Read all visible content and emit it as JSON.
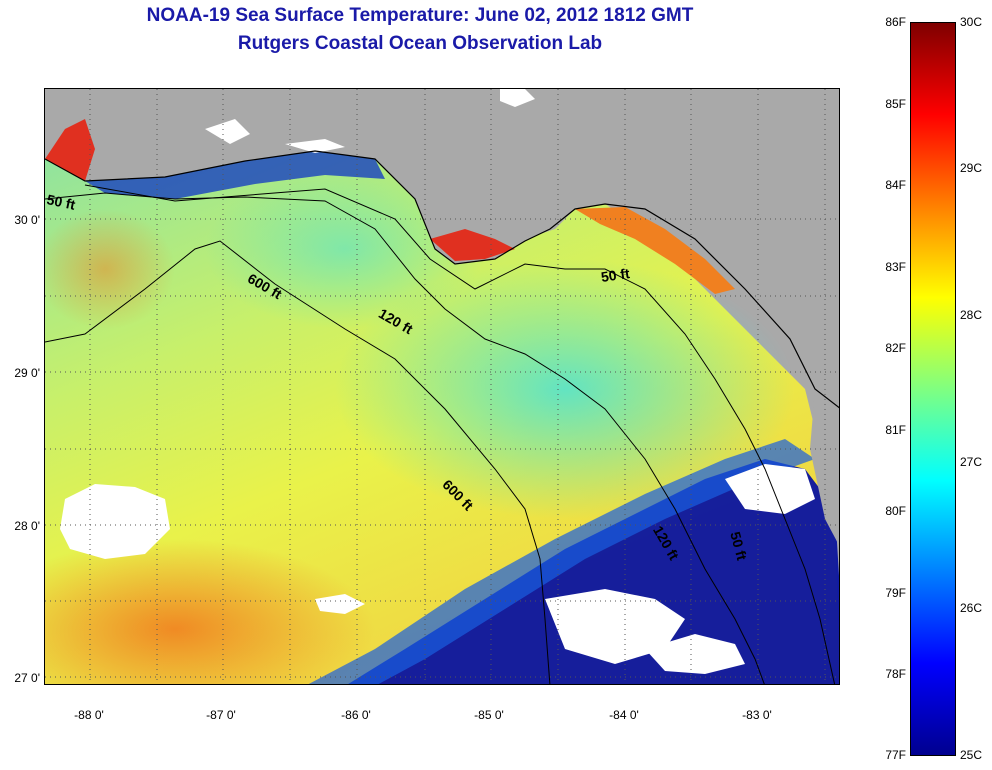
{
  "title": {
    "line1": "NOAA-19 Sea Surface Temperature:  June 02, 2012 1812 GMT",
    "line2": "Rutgers Coastal Ocean Observation Lab"
  },
  "map": {
    "lat_labels": [
      "30 0'",
      "29 0'",
      "28 0'",
      "27 0'"
    ],
    "lon_labels": [
      "-88 0'",
      "-87 0'",
      "-86 0'",
      "-85 0'",
      "-84 0'",
      "-83 0'"
    ],
    "contour_labels": [
      "50 ft",
      "600 ft",
      "120 ft",
      "50 ft",
      "600 ft",
      "120 ft",
      "50 ft"
    ]
  },
  "colorbar": {
    "fahrenheit_labels": [
      "86F",
      "85F",
      "84F",
      "83F",
      "82F",
      "81F",
      "80F",
      "79F",
      "78F",
      "77F"
    ],
    "celsius_labels": [
      "30C",
      "29C",
      "28C",
      "27C",
      "26C",
      "25C"
    ],
    "colors": [
      "#7f0000",
      "#ff0000",
      "#ff8000",
      "#ffff00",
      "#80ff80",
      "#00ffff",
      "#0080ff",
      "#0000ff",
      "#00008f"
    ]
  },
  "legend_colors": {
    "land": "#a9a9a9",
    "cloud": "#ffffff",
    "warm": "#e8a040",
    "cold": "#0a14a0"
  }
}
